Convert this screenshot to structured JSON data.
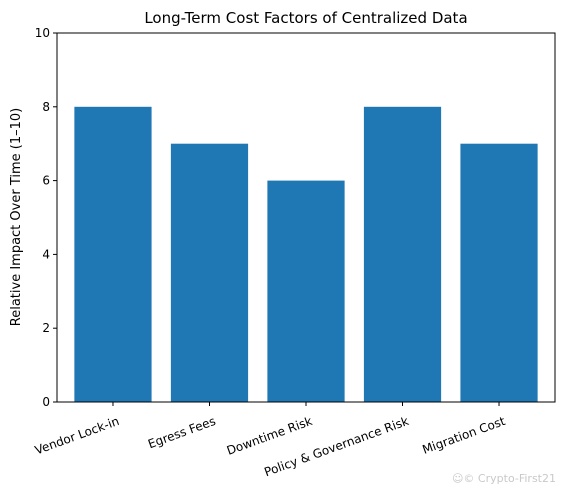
{
  "chart_data": {
    "type": "bar",
    "title": "Long-Term Cost Factors of Centralized Data",
    "xlabel": "",
    "ylabel": "Relative Impact Over Time (1–10)",
    "categories": [
      "Vendor Lock-in",
      "Egress Fees",
      "Downtime Risk",
      "Policy & Governance Risk",
      "Migration Cost"
    ],
    "values": [
      8,
      7,
      6,
      8,
      7
    ],
    "ylim": [
      0,
      10
    ],
    "yticks": [
      "0",
      "2",
      "4",
      "6",
      "8",
      "10"
    ],
    "grid": false,
    "bar_color": "#1f77b4"
  },
  "watermark": "☺© Crypto-First21"
}
